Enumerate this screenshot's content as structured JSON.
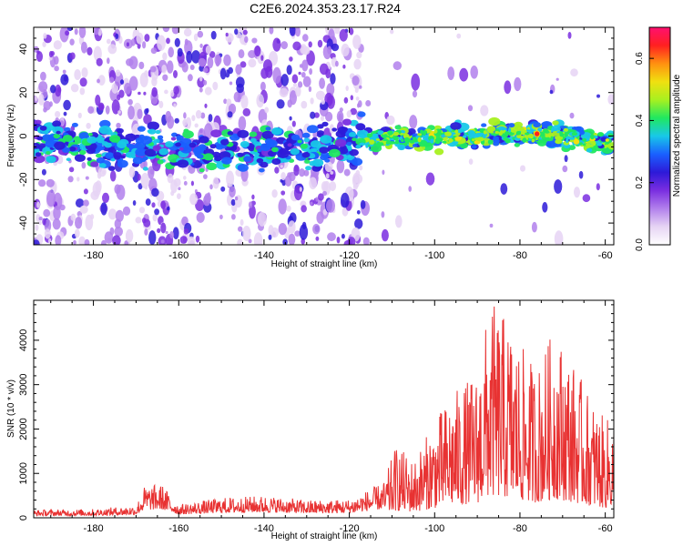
{
  "title": "C2E6.2024.353.23.17.R24",
  "colors": {
    "snr_line": "#e83232",
    "axis": "#000000",
    "colormap": [
      "#ffffff",
      "#e6d4f4",
      "#b280ec",
      "#7a2ee0",
      "#2d1ad8",
      "#1a60ff",
      "#18c8e8",
      "#20e860",
      "#a8f020",
      "#f0e010",
      "#ff9010",
      "#ff2020",
      "#ff1070"
    ]
  },
  "chart_data": [
    {
      "type": "heatmap",
      "title": "C2E6.2024.353.23.17.R24",
      "xlabel": "Height of straight line (km)",
      "ylabel": "Frequency (Hz)",
      "xlim": [
        -194,
        -58
      ],
      "ylim": [
        -50,
        50
      ],
      "x_ticks": [
        -180,
        -160,
        -140,
        -120,
        -100,
        -80,
        -60
      ],
      "y_ticks": [
        -40,
        -20,
        0,
        20,
        40
      ],
      "colorbar": {
        "label": "Normalized spectral amplitude",
        "range": [
          0,
          0.7
        ],
        "ticks": [
          "0.0",
          "0.2",
          "0.4",
          "0.6"
        ]
      },
      "ridge": {
        "description_points": [
          {
            "x": -192,
            "y": -3
          },
          {
            "x": -170,
            "y": -5
          },
          {
            "x": -150,
            "y": -7
          },
          {
            "x": -130,
            "y": -6
          },
          {
            "x": -120,
            "y": -3
          },
          {
            "x": -110,
            "y": -1
          },
          {
            "x": -90,
            "y": 0
          },
          {
            "x": -75,
            "y": 1
          },
          {
            "x": -60,
            "y": -2
          }
        ],
        "peak": {
          "x": -76,
          "y": 1,
          "amplitude": 0.7
        }
      }
    },
    {
      "type": "line",
      "xlabel": "Height of straight line (km)",
      "ylabel": "SNR (10 * v/v)",
      "xlim": [
        -194,
        -58
      ],
      "ylim": [
        0,
        4900
      ],
      "x_ticks": [
        -180,
        -160,
        -140,
        -120,
        -100,
        -80,
        -60
      ],
      "y_ticks": [
        0,
        1000,
        2000,
        3000,
        4000
      ],
      "envelope": [
        {
          "x": -194,
          "y": 180
        },
        {
          "x": -180,
          "y": 200
        },
        {
          "x": -170,
          "y": 280
        },
        {
          "x": -168,
          "y": 720
        },
        {
          "x": -164,
          "y": 760
        },
        {
          "x": -160,
          "y": 300
        },
        {
          "x": -150,
          "y": 450
        },
        {
          "x": -140,
          "y": 500
        },
        {
          "x": -130,
          "y": 400
        },
        {
          "x": -120,
          "y": 420
        },
        {
          "x": -112,
          "y": 800
        },
        {
          "x": -109,
          "y": 1650
        },
        {
          "x": -105,
          "y": 1300
        },
        {
          "x": -100,
          "y": 2200
        },
        {
          "x": -96,
          "y": 2800
        },
        {
          "x": -90,
          "y": 3300
        },
        {
          "x": -87,
          "y": 4900
        },
        {
          "x": -83,
          "y": 4500
        },
        {
          "x": -80,
          "y": 3900
        },
        {
          "x": -76,
          "y": 3400
        },
        {
          "x": -72,
          "y": 4300
        },
        {
          "x": -68,
          "y": 3600
        },
        {
          "x": -64,
          "y": 2800
        },
        {
          "x": -60,
          "y": 2200
        },
        {
          "x": -58,
          "y": 2400
        }
      ]
    }
  ]
}
